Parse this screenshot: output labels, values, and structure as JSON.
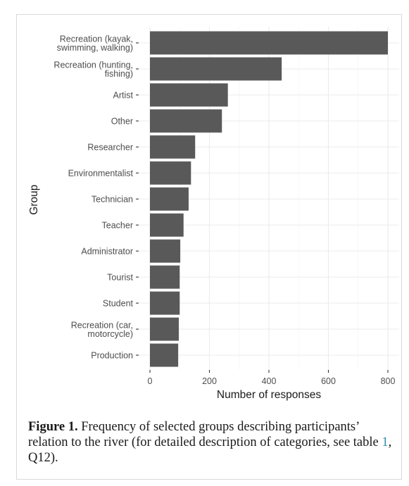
{
  "chart_data": {
    "type": "bar",
    "orientation": "horizontal",
    "categories": [
      "Recreation (kayak, swimming, walking)",
      "Recreation (hunting, fishing)",
      "Artist",
      "Other",
      "Researcher",
      "Environmentalist",
      "Technician",
      "Teacher",
      "Administrator",
      "Tourist",
      "Student",
      "Recreation (car, motorcycle)",
      "Production"
    ],
    "category_lines": [
      [
        "Recreation (kayak,",
        "swimming, walking)"
      ],
      [
        "Recreation (hunting,",
        "fishing)"
      ],
      [
        "Artist"
      ],
      [
        "Other"
      ],
      [
        "Researcher"
      ],
      [
        "Environmentalist"
      ],
      [
        "Technician"
      ],
      [
        "Teacher"
      ],
      [
        "Administrator"
      ],
      [
        "Tourist"
      ],
      [
        "Student"
      ],
      [
        "Recreation (car,",
        "motorcycle)"
      ],
      [
        "Production"
      ]
    ],
    "values": [
      800,
      443,
      262,
      242,
      152,
      138,
      130,
      113,
      102,
      100,
      100,
      97,
      95
    ],
    "xlabel": "Number of responses",
    "ylabel": "Group",
    "xlim": [
      0,
      800
    ],
    "xticks": [
      0,
      200,
      400,
      600,
      800
    ],
    "grid": true,
    "colors": {
      "bar": "#595959",
      "grid": "#ebebeb",
      "background": "#ffffff"
    }
  },
  "caption": {
    "label": "Figure 1.",
    "text_before_ref": " Frequency of selected groups describing participants’ relation to the river (for detailed description of categories, see table ",
    "ref": "1",
    "text_after_ref": ", Q12)."
  }
}
